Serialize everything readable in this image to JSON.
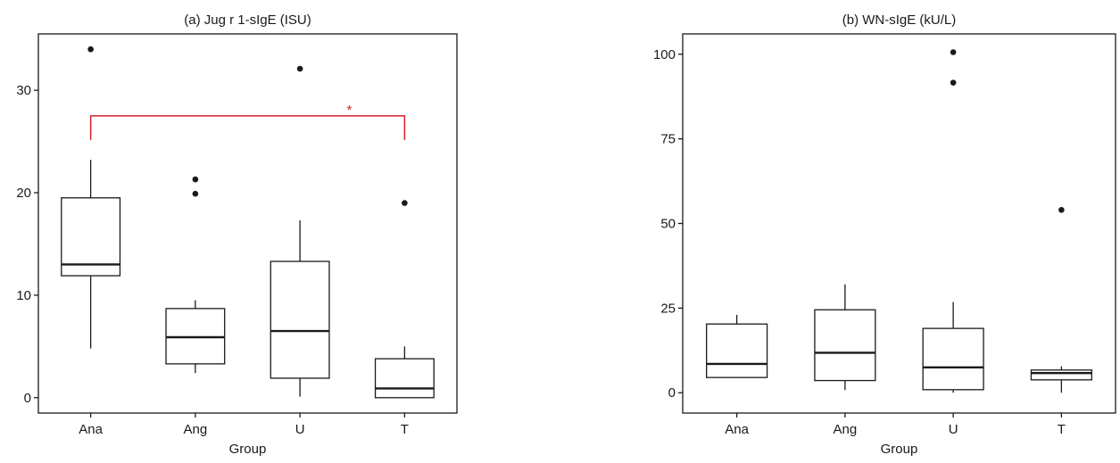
{
  "chart_data": [
    {
      "type": "box",
      "title": "(a) Jug r 1-sIgE (ISU)",
      "xlabel": "Group",
      "ylabel": "",
      "ylim": [
        -1.5,
        35.5
      ],
      "yticks": [
        0,
        10,
        20,
        30
      ],
      "categories": [
        "Ana",
        "Ang",
        "U",
        "T"
      ],
      "boxes": [
        {
          "category": "Ana",
          "min": 4.8,
          "q1": 11.9,
          "median": 13.0,
          "q3": 19.5,
          "max": 23.2,
          "outliers": [
            34.0
          ]
        },
        {
          "category": "Ang",
          "min": 2.4,
          "q1": 3.3,
          "median": 5.9,
          "q3": 8.7,
          "max": 9.5,
          "outliers": [
            19.9,
            21.3
          ]
        },
        {
          "category": "U",
          "min": 0.1,
          "q1": 1.9,
          "median": 6.5,
          "q3": 13.3,
          "max": 17.3,
          "outliers": [
            32.1
          ]
        },
        {
          "category": "T",
          "min": 0.0,
          "q1": 0.0,
          "median": 0.9,
          "q3": 3.8,
          "max": 5.0,
          "outliers": [
            19.0
          ]
        }
      ],
      "significance": [
        {
          "from": "Ana",
          "to": "T",
          "label": "*",
          "y": 27.5,
          "color": "#d2222d"
        }
      ]
    },
    {
      "type": "box",
      "title": "(b) WN-sIgE (kU/L)",
      "xlabel": "Group",
      "ylabel": "",
      "ylim": [
        -6,
        106
      ],
      "yticks": [
        0,
        25,
        50,
        75,
        100
      ],
      "categories": [
        "Ana",
        "Ang",
        "U",
        "T"
      ],
      "boxes": [
        {
          "category": "Ana",
          "min": 4.5,
          "q1": 4.5,
          "median": 8.5,
          "q3": 20.3,
          "max": 23.0,
          "outliers": []
        },
        {
          "category": "Ang",
          "min": 0.8,
          "q1": 3.6,
          "median": 11.8,
          "q3": 24.5,
          "max": 32.0,
          "outliers": []
        },
        {
          "category": "U",
          "min": 0.0,
          "q1": 0.9,
          "median": 7.5,
          "q3": 19.0,
          "max": 26.8,
          "outliers": [
            91.6,
            100.6
          ]
        },
        {
          "category": "T",
          "min": 0.0,
          "q1": 3.8,
          "median": 5.8,
          "q3": 6.7,
          "max": 7.8,
          "outliers": [
            54.0
          ]
        }
      ],
      "significance": []
    }
  ]
}
